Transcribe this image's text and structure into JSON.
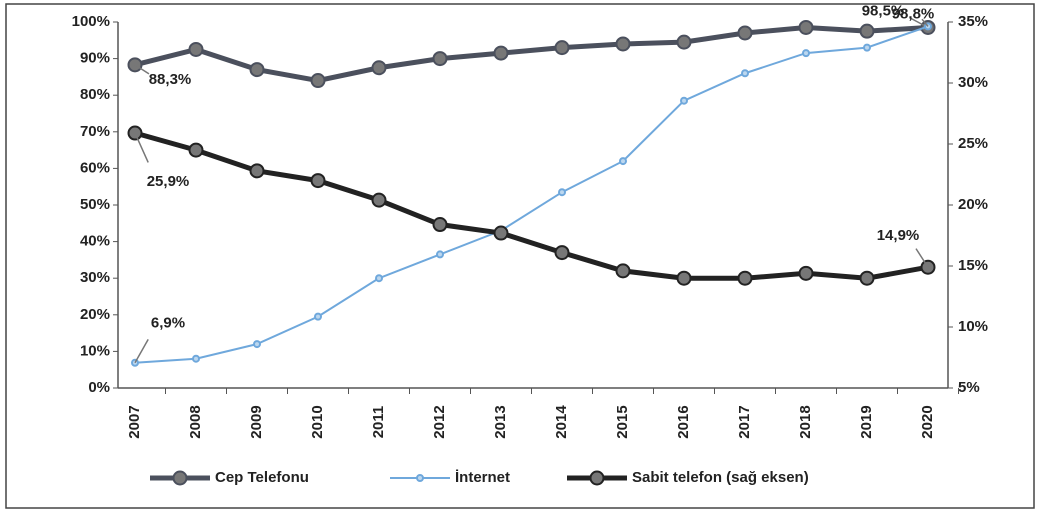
{
  "chart_data": {
    "type": "line",
    "categories": [
      "2007",
      "2008",
      "2009",
      "2010",
      "2011",
      "2012",
      "2013",
      "2014",
      "2015",
      "2016",
      "2017",
      "2018",
      "2019",
      "2020"
    ],
    "series": [
      {
        "name": "Cep Telefonu",
        "color": "#4b505d",
        "axis": "y",
        "values": [
          88.3,
          92.5,
          87,
          84,
          87.5,
          90,
          91.5,
          93,
          94,
          94.5,
          97,
          98.5,
          97.5,
          98.5
        ],
        "value_labels": [
          "88,3%",
          null,
          null,
          null,
          null,
          null,
          null,
          null,
          null,
          null,
          null,
          null,
          null,
          "98,5%"
        ]
      },
      {
        "name": "İnternet",
        "color": "#6fa8dc",
        "axis": "y",
        "values": [
          6.9,
          8,
          12,
          19.5,
          30,
          36.5,
          43,
          53.5,
          62,
          78.5,
          86,
          91.5,
          93,
          98.8
        ],
        "value_labels": [
          "6,9%",
          null,
          null,
          null,
          null,
          null,
          null,
          null,
          null,
          null,
          null,
          null,
          null,
          "98,8%"
        ]
      },
      {
        "name": "Sabit telefon (sağ eksen)",
        "color": "#222222",
        "axis": "y2",
        "values": [
          25.9,
          24.5,
          22.8,
          22.0,
          20.4,
          18.4,
          17.7,
          16.1,
          14.6,
          14.0,
          14.0,
          14.4,
          14.0,
          14.9
        ],
        "value_labels": [
          "25,9%",
          null,
          null,
          null,
          null,
          null,
          null,
          null,
          null,
          null,
          null,
          null,
          null,
          "14,9%"
        ]
      }
    ],
    "ylim": [
      0,
      100
    ],
    "yticks": [
      {
        "value": 0,
        "label": "0%"
      },
      {
        "value": 10,
        "label": "10%"
      },
      {
        "value": 20,
        "label": "20%"
      },
      {
        "value": 30,
        "label": "30%"
      },
      {
        "value": 40,
        "label": "40%"
      },
      {
        "value": 50,
        "label": "50%"
      },
      {
        "value": 60,
        "label": "60%"
      },
      {
        "value": 70,
        "label": "70%"
      },
      {
        "value": 80,
        "label": "80%"
      },
      {
        "value": 90,
        "label": "90%"
      },
      {
        "value": 100,
        "label": "100%"
      }
    ],
    "y2lim": [
      5,
      35
    ],
    "y2ticks": [
      {
        "value": 5,
        "label": "5%"
      },
      {
        "value": 10,
        "label": "10%"
      },
      {
        "value": 15,
        "label": "15%"
      },
      {
        "value": 20,
        "label": "20%"
      },
      {
        "value": 25,
        "label": "25%"
      },
      {
        "value": 30,
        "label": "30%"
      },
      {
        "value": 35,
        "label": "35%"
      }
    ],
    "legend": "bottom"
  }
}
